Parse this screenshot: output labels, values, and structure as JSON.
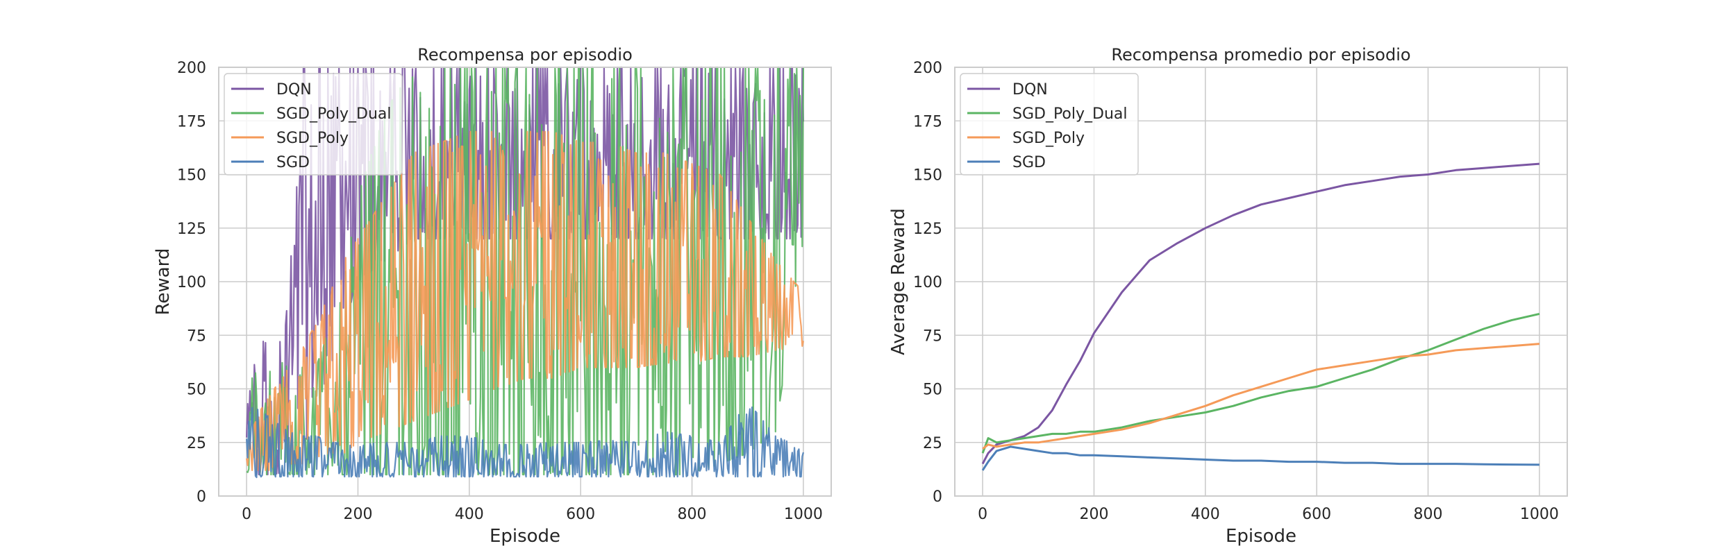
{
  "colors": {
    "DQN": "#7b56a3",
    "SGD_Poly_Dual": "#5bb563",
    "SGD_Poly": "#f59a58",
    "SGD": "#4c7fb8"
  },
  "chart_data": [
    {
      "type": "line",
      "title": "Recompensa por episodio",
      "xlabel": "Episode",
      "ylabel": "Reward",
      "xlim": [
        -50,
        1050
      ],
      "ylim": [
        0,
        200
      ],
      "xticks": [
        "0",
        "200",
        "400",
        "600",
        "800",
        "1000"
      ],
      "yticks": [
        "0",
        "25",
        "50",
        "75",
        "100",
        "125",
        "150",
        "175",
        "200"
      ],
      "grid": true,
      "legend_position": "top-left",
      "series": [
        {
          "name": "DQN",
          "x": [
            0,
            25,
            50,
            75,
            100,
            125,
            150,
            175,
            200,
            250,
            300,
            350,
            400,
            450,
            500,
            550,
            600,
            650,
            700,
            750,
            800,
            850,
            900,
            950,
            1000
          ],
          "low": [
            10,
            10,
            10,
            12,
            20,
            40,
            60,
            80,
            100,
            110,
            120,
            120,
            120,
            120,
            120,
            120,
            120,
            120,
            120,
            120,
            120,
            120,
            120,
            120,
            120
          ],
          "high": [
            40,
            78,
            60,
            90,
            200,
            200,
            200,
            200,
            200,
            200,
            200,
            200,
            200,
            200,
            200,
            200,
            200,
            200,
            200,
            200,
            200,
            200,
            200,
            200,
            200
          ]
        },
        {
          "name": "SGD_Poly_Dual",
          "x": [
            0,
            25,
            50,
            75,
            100,
            125,
            150,
            175,
            200,
            250,
            300,
            350,
            400,
            450,
            500,
            550,
            600,
            650,
            700,
            750,
            800,
            850,
            900,
            950,
            1000
          ],
          "low": [
            10,
            10,
            10,
            10,
            10,
            10,
            10,
            10,
            10,
            10,
            10,
            10,
            10,
            10,
            10,
            10,
            10,
            10,
            10,
            10,
            10,
            15,
            20,
            30,
            120
          ],
          "high": [
            45,
            70,
            65,
            60,
            60,
            60,
            80,
            100,
            140,
            180,
            200,
            200,
            200,
            200,
            200,
            200,
            200,
            200,
            200,
            200,
            200,
            200,
            200,
            200,
            200
          ]
        },
        {
          "name": "SGD_Poly",
          "x": [
            0,
            25,
            50,
            75,
            100,
            125,
            150,
            175,
            200,
            250,
            300,
            350,
            400,
            450,
            500,
            550,
            600,
            650,
            700,
            750,
            800,
            850,
            900,
            950,
            1000
          ],
          "low": [
            12,
            12,
            12,
            15,
            15,
            18,
            20,
            20,
            25,
            30,
            35,
            40,
            45,
            50,
            55,
            55,
            60,
            60,
            60,
            62,
            62,
            65,
            65,
            68,
            70
          ],
          "high": [
            25,
            40,
            50,
            60,
            70,
            80,
            95,
            110,
            120,
            140,
            160,
            165,
            170,
            170,
            170,
            170,
            165,
            165,
            160,
            160,
            155,
            150,
            130,
            110,
            95
          ]
        },
        {
          "name": "SGD",
          "x": [
            0,
            25,
            50,
            75,
            100,
            125,
            150,
            175,
            200,
            250,
            300,
            350,
            400,
            450,
            500,
            550,
            600,
            650,
            700,
            750,
            800,
            850,
            900,
            950,
            1000
          ],
          "low": [
            8,
            9,
            9,
            9,
            9,
            9,
            9,
            9,
            9,
            9,
            9,
            9,
            9,
            9,
            9,
            9,
            9,
            9,
            9,
            9,
            9,
            9,
            9,
            9,
            9
          ],
          "high": [
            42,
            40,
            35,
            30,
            28,
            28,
            25,
            25,
            24,
            25,
            25,
            28,
            28,
            24,
            24,
            25,
            25,
            26,
            25,
            30,
            28,
            25,
            44,
            28,
            22
          ]
        }
      ]
    },
    {
      "type": "line",
      "title": "Recompensa promedio por episodio",
      "xlabel": "Episode",
      "ylabel": "Average Reward",
      "xlim": [
        -50,
        1050
      ],
      "ylim": [
        0,
        200
      ],
      "xticks": [
        "0",
        "200",
        "400",
        "600",
        "800",
        "1000"
      ],
      "yticks": [
        "0",
        "25",
        "50",
        "75",
        "100",
        "125",
        "150",
        "175",
        "200"
      ],
      "grid": true,
      "legend_position": "top-left",
      "series": [
        {
          "name": "DQN",
          "x": [
            0,
            10,
            25,
            50,
            75,
            100,
            125,
            150,
            175,
            200,
            250,
            300,
            350,
            400,
            450,
            500,
            550,
            600,
            650,
            700,
            750,
            800,
            850,
            900,
            950,
            1000
          ],
          "y": [
            15,
            20,
            24,
            26,
            28,
            32,
            40,
            52,
            63,
            76,
            95,
            110,
            118,
            125,
            131,
            136,
            139,
            142,
            145,
            147,
            149,
            150,
            152,
            153,
            154,
            155
          ]
        },
        {
          "name": "SGD_Poly_Dual",
          "x": [
            0,
            10,
            25,
            50,
            75,
            100,
            125,
            150,
            175,
            200,
            250,
            300,
            350,
            400,
            450,
            500,
            550,
            600,
            650,
            700,
            750,
            800,
            850,
            900,
            950,
            1000
          ],
          "y": [
            20,
            27,
            25,
            26,
            27,
            28,
            29,
            29,
            30,
            30,
            32,
            35,
            37,
            39,
            42,
            46,
            49,
            51,
            55,
            59,
            64,
            68,
            73,
            78,
            82,
            85
          ]
        },
        {
          "name": "SGD_Poly",
          "x": [
            0,
            10,
            25,
            50,
            75,
            100,
            125,
            150,
            175,
            200,
            250,
            300,
            350,
            400,
            450,
            500,
            550,
            600,
            650,
            700,
            750,
            800,
            850,
            900,
            950,
            1000
          ],
          "y": [
            22,
            24,
            23,
            24,
            25,
            25,
            26,
            27,
            28,
            29,
            31,
            34,
            38,
            42,
            47,
            51,
            55,
            59,
            61,
            63,
            65,
            66,
            68,
            69,
            70,
            71
          ]
        },
        {
          "name": "SGD",
          "x": [
            0,
            10,
            25,
            50,
            75,
            100,
            125,
            150,
            175,
            200,
            250,
            300,
            350,
            400,
            450,
            500,
            550,
            600,
            650,
            700,
            750,
            800,
            850,
            900,
            950,
            1000
          ],
          "y": [
            12,
            16,
            21,
            23,
            22,
            21,
            20,
            20,
            19,
            19,
            18.5,
            18,
            17.5,
            17,
            16.5,
            16.5,
            16,
            16,
            15.5,
            15.5,
            15,
            15,
            15,
            14.8,
            14.7,
            14.6
          ]
        }
      ]
    }
  ]
}
